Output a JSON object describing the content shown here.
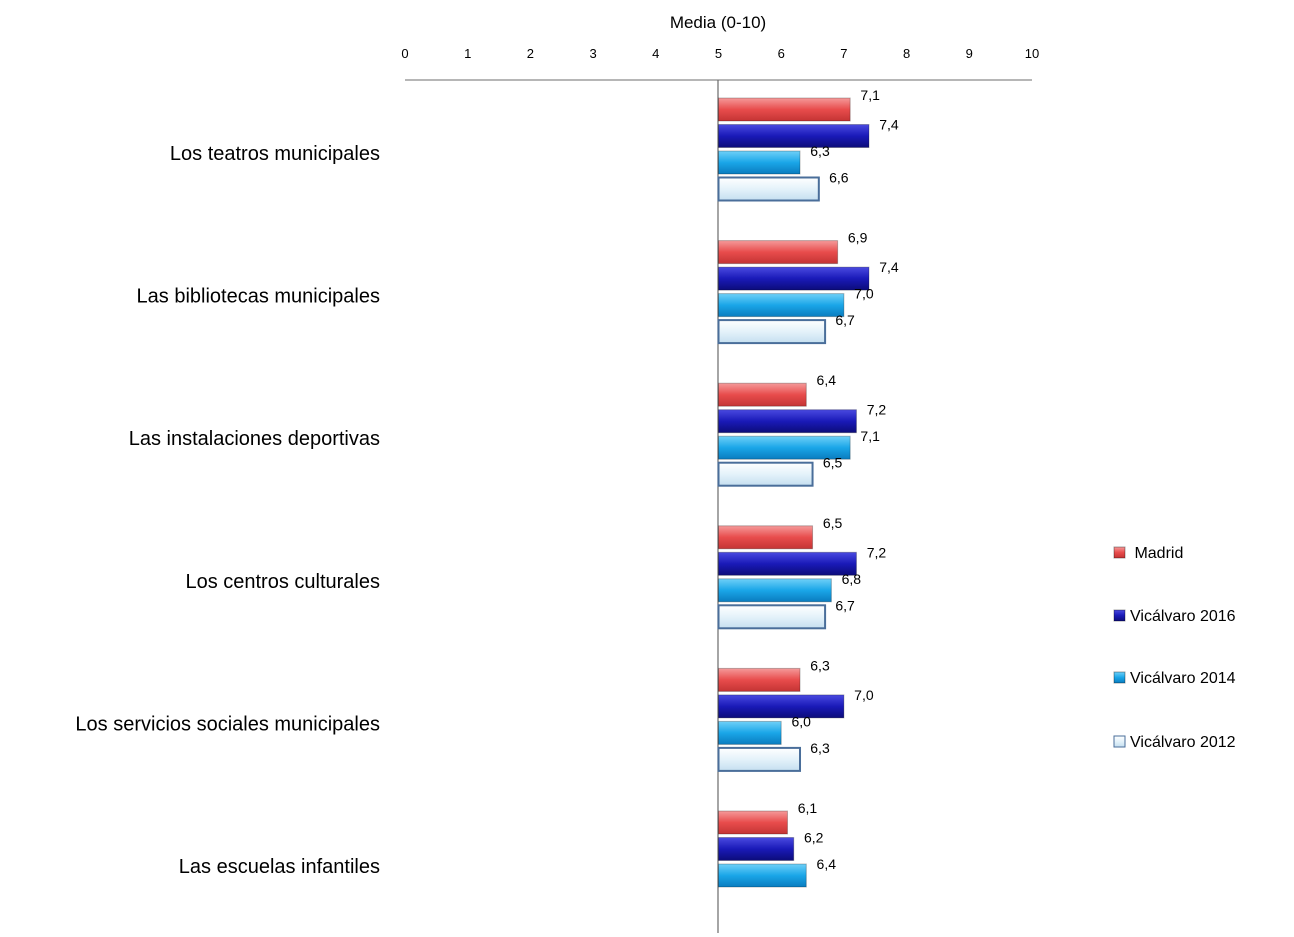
{
  "chart_data": {
    "type": "bar",
    "orientation": "horizontal",
    "title": "",
    "xlabel": "Media (0-10)",
    "ylabel": "",
    "xlim": [
      0,
      10
    ],
    "x_ticks": [
      "0",
      "1",
      "2",
      "3",
      "4",
      "5",
      "6",
      "7",
      "8",
      "9",
      "10"
    ],
    "grid": false,
    "legend_position": "right",
    "categories": [
      "Los teatros municipales",
      "Las bibliotecas municipales",
      "Las instalaciones deportivas",
      "Los  centros culturales",
      "Los servicios sociales municipales",
      "Las escuelas infantiles"
    ],
    "series": [
      {
        "name": "Madrid",
        "color": "#e84c4c",
        "values": [
          7.1,
          6.9,
          6.4,
          6.5,
          6.3,
          6.1
        ],
        "labels": [
          "7,1",
          "6,9",
          "6,4",
          "6,5",
          "6,3",
          "6,1"
        ]
      },
      {
        "name": "Vicálvaro 2016",
        "color": "#1a1ab8",
        "values": [
          7.4,
          7.4,
          7.2,
          7.2,
          7.0,
          6.2
        ],
        "labels": [
          "7,4",
          "7,4",
          "7,2",
          "7,2",
          "7,0",
          "6,2"
        ]
      },
      {
        "name": "Vicálvaro 2014",
        "color": "#1aa6e8",
        "values": [
          6.3,
          7.0,
          7.1,
          6.8,
          6.0,
          6.4
        ],
        "labels": [
          "6,3",
          "7,0",
          "7,1",
          "6,8",
          "6,0",
          "6,4"
        ]
      },
      {
        "name": "Vicálvaro 2012",
        "color": "#e4f2fa",
        "values": [
          6.6,
          6.7,
          6.5,
          6.7,
          6.3,
          null
        ],
        "labels": [
          "6,6",
          "6,7",
          "6,5",
          "6,7",
          "6,3",
          ""
        ]
      }
    ],
    "legend": [
      {
        "label": " Madrid",
        "color": "#e84c4c"
      },
      {
        "label": "Vicálvaro 2016",
        "color": "#1a1ab8"
      },
      {
        "label": "Vicálvaro 2014",
        "color": "#1aa6e8"
      },
      {
        "label": "Vicálvaro 2012",
        "color": "#e4f2fa"
      }
    ]
  }
}
